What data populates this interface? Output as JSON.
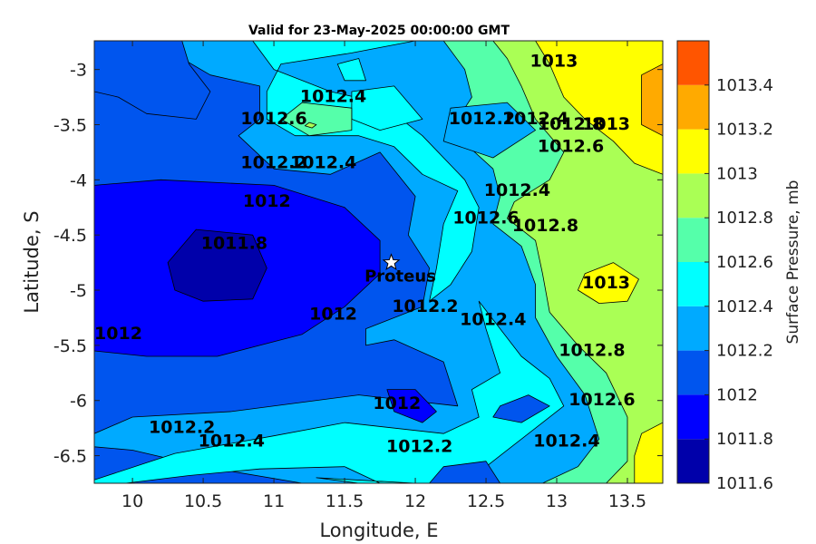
{
  "title": "Valid for 23-May-2025 00:00:00 GMT",
  "axes": {
    "xlabel": "Longitude, E",
    "ylabel": "Latitude, S",
    "xlim": [
      9.73,
      13.75
    ],
    "ylim": [
      -6.75,
      -2.74
    ],
    "xticks": [
      "10",
      "10.5",
      "11",
      "11.5",
      "12",
      "12.5",
      "13",
      "13.5"
    ],
    "yticks": [
      "-3",
      "-3.5",
      "-4",
      "-4.5",
      "-5",
      "-5.5",
      "-6",
      "-6.5"
    ]
  },
  "colorbar": {
    "label": "Surface Pressure, mb",
    "ticks": [
      "1013.4",
      "1013.2",
      "1013",
      "1012.8",
      "1012.6",
      "1012.4",
      "1012.2",
      "1012",
      "1011.8",
      "1011.6"
    ],
    "levels": [
      {
        "from": 1011.6,
        "to": 1011.8,
        "color": "#0000aa"
      },
      {
        "from": 1011.8,
        "to": 1012.0,
        "color": "#0000ff"
      },
      {
        "from": 1012.0,
        "to": 1012.2,
        "color": "#0055ee"
      },
      {
        "from": 1012.2,
        "to": 1012.4,
        "color": "#00aaff"
      },
      {
        "from": 1012.4,
        "to": 1012.6,
        "color": "#00ffff"
      },
      {
        "from": 1012.6,
        "to": 1012.8,
        "color": "#55ffaa"
      },
      {
        "from": 1012.8,
        "to": 1013.0,
        "color": "#aaff55"
      },
      {
        "from": 1013.0,
        "to": 1013.2,
        "color": "#ffff00"
      },
      {
        "from": 1013.2,
        "to": 1013.4,
        "color": "#ffaa00"
      },
      {
        "from": 1013.4,
        "to": 1013.6,
        "color": "#ff5500"
      }
    ]
  },
  "marker": {
    "name": "Proteus",
    "lon": 11.83,
    "lat": -4.75
  },
  "contour_labels": [
    {
      "text": "1013",
      "lon": 12.98,
      "lat": -2.93
    },
    {
      "text": "1013",
      "lon": 13.35,
      "lat": -3.5
    },
    {
      "text": "1013",
      "lon": 13.35,
      "lat": -4.94
    },
    {
      "text": "1012.4",
      "lon": 11.42,
      "lat": -3.25
    },
    {
      "text": "1012.6",
      "lon": 11.0,
      "lat": -3.45
    },
    {
      "text": "1012.4",
      "lon": 11.35,
      "lat": -3.85
    },
    {
      "text": "1012.2",
      "lon": 11.0,
      "lat": -3.85
    },
    {
      "text": "1012.2",
      "lon": 12.47,
      "lat": -3.45
    },
    {
      "text": "1012.4",
      "lon": 12.85,
      "lat": -3.45
    },
    {
      "text": "1012.8",
      "lon": 13.1,
      "lat": -3.5
    },
    {
      "text": "1012.6",
      "lon": 13.1,
      "lat": -3.7
    },
    {
      "text": "1012",
      "lon": 10.95,
      "lat": -4.2
    },
    {
      "text": "1011.8",
      "lon": 10.72,
      "lat": -4.58
    },
    {
      "text": "1012.4",
      "lon": 12.72,
      "lat": -4.1
    },
    {
      "text": "1012.6",
      "lon": 12.5,
      "lat": -4.35
    },
    {
      "text": "1012.8",
      "lon": 12.92,
      "lat": -4.42
    },
    {
      "text": "1012",
      "lon": 11.42,
      "lat": -5.22
    },
    {
      "text": "1012.2",
      "lon": 12.07,
      "lat": -5.15
    },
    {
      "text": "1012",
      "lon": 9.9,
      "lat": -5.4
    },
    {
      "text": "1012.4",
      "lon": 12.55,
      "lat": -5.27
    },
    {
      "text": "1012.8",
      "lon": 13.25,
      "lat": -5.55
    },
    {
      "text": "1012",
      "lon": 11.87,
      "lat": -6.03
    },
    {
      "text": "1012.6",
      "lon": 13.32,
      "lat": -6.0
    },
    {
      "text": "1012.2",
      "lon": 12.03,
      "lat": -6.42
    },
    {
      "text": "1012.2",
      "lon": 10.35,
      "lat": -6.25
    },
    {
      "text": "1012.4",
      "lon": 10.7,
      "lat": -6.37
    },
    {
      "text": "1012.4",
      "lon": 13.07,
      "lat": -6.37
    }
  ],
  "regions": [
    {
      "level": 1012.0,
      "points": [
        [
          9.73,
          -2.74
        ],
        [
          13.75,
          -2.74
        ],
        [
          13.75,
          -6.75
        ],
        [
          9.73,
          -6.75
        ]
      ]
    },
    {
      "level": 1012.2,
      "points": [
        [
          10.3,
          -2.74
        ],
        [
          13.75,
          -2.74
        ],
        [
          13.75,
          -6.75
        ],
        [
          11.2,
          -6.75
        ],
        [
          10.5,
          -6.6
        ],
        [
          10.0,
          -6.45
        ],
        [
          9.73,
          -6.42
        ],
        [
          9.73,
          -6.3
        ],
        [
          10.0,
          -6.15
        ],
        [
          10.7,
          -6.1
        ],
        [
          11.6,
          -5.95
        ],
        [
          12.3,
          -6.05
        ],
        [
          12.2,
          -5.65
        ],
        [
          11.85,
          -5.45
        ],
        [
          11.65,
          -5.5
        ],
        [
          11.65,
          -5.35
        ],
        [
          12.05,
          -5.15
        ],
        [
          12.1,
          -4.8
        ],
        [
          11.95,
          -4.5
        ],
        [
          12.0,
          -4.15
        ],
        [
          11.75,
          -3.75
        ],
        [
          11.4,
          -3.95
        ],
        [
          11.0,
          -3.9
        ],
        [
          10.75,
          -3.6
        ],
        [
          10.9,
          -3.45
        ],
        [
          10.9,
          -3.15
        ],
        [
          10.55,
          -3.05
        ],
        [
          10.35,
          -2.9
        ]
      ]
    },
    {
      "level": 1012.4,
      "points": [
        [
          10.85,
          -2.74
        ],
        [
          13.75,
          -2.74
        ],
        [
          13.75,
          -6.75
        ],
        [
          11.75,
          -6.75
        ],
        [
          11.5,
          -6.6
        ],
        [
          10.9,
          -6.62
        ],
        [
          10.4,
          -6.68
        ],
        [
          9.95,
          -6.75
        ],
        [
          9.73,
          -6.75
        ],
        [
          9.73,
          -6.72
        ],
        [
          10.3,
          -6.48
        ],
        [
          11.0,
          -6.32
        ],
        [
          11.5,
          -6.2
        ],
        [
          12.2,
          -6.3
        ],
        [
          12.45,
          -6.15
        ],
        [
          12.4,
          -5.9
        ],
        [
          12.6,
          -5.75
        ],
        [
          12.5,
          -5.35
        ],
        [
          12.45,
          -5.1
        ],
        [
          12.75,
          -5.6
        ],
        [
          12.95,
          -5.8
        ],
        [
          13.05,
          -6.05
        ],
        [
          12.85,
          -6.25
        ],
        [
          12.6,
          -6.5
        ],
        [
          12.35,
          -6.75
        ],
        [
          11.6,
          -6.75
        ],
        [
          11.3,
          -6.7
        ],
        [
          12.0,
          -6.75
        ],
        [
          13.75,
          -6.75
        ],
        [
          13.75,
          -2.74
        ],
        [
          12.0,
          -2.74
        ],
        [
          11.55,
          -2.85
        ],
        [
          11.05,
          -2.95
        ],
        [
          10.95,
          -3.2
        ],
        [
          10.95,
          -3.45
        ],
        [
          11.15,
          -3.6
        ],
        [
          11.6,
          -3.6
        ],
        [
          11.85,
          -3.7
        ],
        [
          12.05,
          -3.95
        ],
        [
          12.3,
          -4.1
        ],
        [
          12.2,
          -4.4
        ],
        [
          12.15,
          -4.8
        ],
        [
          12.1,
          -5.1
        ],
        [
          12.25,
          -4.95
        ],
        [
          12.4,
          -4.65
        ],
        [
          12.45,
          -4.25
        ],
        [
          12.35,
          -4.0
        ],
        [
          12.05,
          -3.6
        ],
        [
          11.75,
          -3.3
        ],
        [
          11.4,
          -3.2
        ],
        [
          11.2,
          -3.1
        ],
        [
          11.0,
          -3.0
        ]
      ]
    },
    {
      "level": 1012.6,
      "points": [
        [
          12.2,
          -2.74
        ],
        [
          13.75,
          -2.74
        ],
        [
          13.75,
          -6.75
        ],
        [
          12.9,
          -6.75
        ],
        [
          13.15,
          -6.6
        ],
        [
          13.3,
          -6.35
        ],
        [
          13.2,
          -5.95
        ],
        [
          13.0,
          -5.6
        ],
        [
          12.85,
          -5.25
        ],
        [
          12.85,
          -4.95
        ],
        [
          12.75,
          -4.6
        ],
        [
          12.55,
          -4.4
        ],
        [
          12.6,
          -4.15
        ],
        [
          12.55,
          -3.9
        ],
        [
          12.25,
          -3.55
        ],
        [
          12.4,
          -3.25
        ],
        [
          12.35,
          -3.0
        ]
      ]
    },
    {
      "level": 1012.8,
      "points": [
        [
          12.55,
          -2.74
        ],
        [
          13.75,
          -2.74
        ],
        [
          13.75,
          -6.75
        ],
        [
          13.35,
          -6.75
        ],
        [
          13.5,
          -6.55
        ],
        [
          13.5,
          -6.15
        ],
        [
          13.35,
          -5.75
        ],
        [
          13.15,
          -5.5
        ],
        [
          12.95,
          -5.2
        ],
        [
          12.9,
          -4.85
        ],
        [
          12.85,
          -4.55
        ],
        [
          12.65,
          -4.35
        ],
        [
          12.7,
          -4.2
        ],
        [
          12.95,
          -4.0
        ],
        [
          13.05,
          -3.75
        ],
        [
          12.85,
          -3.45
        ],
        [
          12.75,
          -3.15
        ],
        [
          12.65,
          -2.9
        ]
      ]
    },
    {
      "level": 1013.0,
      "points": [
        [
          12.85,
          -2.74
        ],
        [
          13.75,
          -2.74
        ],
        [
          13.75,
          -3.95
        ],
        [
          13.55,
          -3.85
        ],
        [
          13.4,
          -3.65
        ],
        [
          13.2,
          -3.45
        ],
        [
          13.05,
          -3.25
        ],
        [
          12.95,
          -2.95
        ]
      ]
    },
    {
      "level": 1013.0,
      "points": [
        [
          13.2,
          -4.85
        ],
        [
          13.4,
          -4.75
        ],
        [
          13.58,
          -4.9
        ],
        [
          13.5,
          -5.1
        ],
        [
          13.3,
          -5.12
        ],
        [
          13.15,
          -5.0
        ]
      ]
    },
    {
      "level": 1013.0,
      "points": [
        [
          13.6,
          -6.3
        ],
        [
          13.75,
          -6.2
        ],
        [
          13.75,
          -6.75
        ],
        [
          13.55,
          -6.75
        ],
        [
          13.55,
          -6.5
        ]
      ]
    },
    {
      "level": 1013.2,
      "points": [
        [
          13.6,
          -3.05
        ],
        [
          13.75,
          -2.95
        ],
        [
          13.75,
          -3.6
        ],
        [
          13.6,
          -3.5
        ]
      ]
    },
    {
      "level": 1012.4,
      "points": [
        [
          11.55,
          -3.2
        ],
        [
          11.85,
          -3.15
        ],
        [
          12.05,
          -3.45
        ],
        [
          11.75,
          -3.55
        ],
        [
          11.55,
          -3.45
        ]
      ]
    },
    {
      "level": 1012.6,
      "points": [
        [
          11.2,
          -3.3
        ],
        [
          11.55,
          -3.35
        ],
        [
          11.55,
          -3.55
        ],
        [
          11.25,
          -3.6
        ],
        [
          11.05,
          -3.45
        ]
      ]
    },
    {
      "level": 1012.8,
      "points": [
        [
          11.25,
          -3.48
        ],
        [
          11.3,
          -3.5
        ],
        [
          11.27,
          -3.53
        ],
        [
          11.22,
          -3.51
        ]
      ]
    },
    {
      "level": 1012.2,
      "points": [
        [
          12.25,
          -3.35
        ],
        [
          12.65,
          -3.3
        ],
        [
          12.85,
          -3.55
        ],
        [
          12.55,
          -3.8
        ],
        [
          12.2,
          -3.65
        ]
      ]
    },
    {
      "level": 1012.4,
      "points": [
        [
          11.45,
          -2.95
        ],
        [
          11.6,
          -2.9
        ],
        [
          11.65,
          -3.1
        ],
        [
          11.5,
          -3.1
        ]
      ]
    },
    {
      "level": 1012.0,
      "points": [
        [
          12.6,
          -6.05
        ],
        [
          12.8,
          -5.95
        ],
        [
          12.95,
          -6.05
        ],
        [
          12.75,
          -6.2
        ],
        [
          12.55,
          -6.15
        ]
      ]
    },
    {
      "level": 1012.0,
      "points": [
        [
          12.2,
          -6.6
        ],
        [
          12.5,
          -6.55
        ],
        [
          12.6,
          -6.75
        ],
        [
          12.1,
          -6.75
        ]
      ]
    },
    {
      "level": 1011.8,
      "points": [
        [
          9.73,
          -4.05
        ],
        [
          10.2,
          -4.0
        ],
        [
          11.0,
          -4.05
        ],
        [
          11.5,
          -4.25
        ],
        [
          11.75,
          -4.55
        ],
        [
          11.75,
          -4.85
        ],
        [
          11.5,
          -5.15
        ],
        [
          11.2,
          -5.4
        ],
        [
          10.6,
          -5.6
        ],
        [
          10.1,
          -5.6
        ],
        [
          9.73,
          -5.55
        ]
      ]
    },
    {
      "level": 1011.6,
      "points": [
        [
          10.25,
          -4.75
        ],
        [
          10.45,
          -4.45
        ],
        [
          10.85,
          -4.5
        ],
        [
          10.95,
          -4.8
        ],
        [
          10.85,
          -5.08
        ],
        [
          10.5,
          -5.1
        ],
        [
          10.3,
          -5.0
        ]
      ]
    },
    {
      "level": 1011.8,
      "points": [
        [
          11.8,
          -5.9
        ],
        [
          12.0,
          -5.9
        ],
        [
          12.15,
          -6.1
        ],
        [
          12.05,
          -6.2
        ],
        [
          11.85,
          -6.1
        ]
      ]
    },
    {
      "level": 1012.0,
      "points": [
        [
          9.73,
          -2.74
        ],
        [
          10.35,
          -2.74
        ],
        [
          10.4,
          -2.95
        ],
        [
          10.55,
          -3.2
        ],
        [
          10.45,
          -3.45
        ],
        [
          10.1,
          -3.4
        ],
        [
          9.9,
          -3.25
        ],
        [
          9.73,
          -3.2
        ]
      ]
    }
  ]
}
